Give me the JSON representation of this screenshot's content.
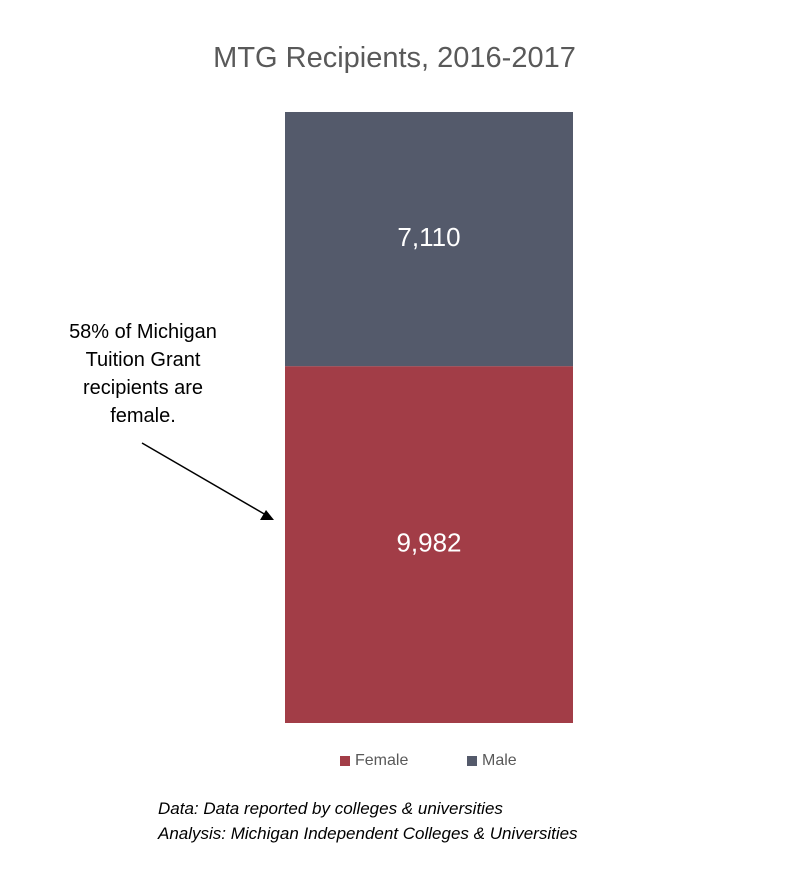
{
  "chart_data": {
    "type": "bar",
    "stacked": true,
    "title": "MTG Recipients, 2016-2017",
    "categories": [
      ""
    ],
    "series": [
      {
        "name": "Female",
        "values": [
          9982
        ],
        "label": "9,982",
        "color": "#a23d47"
      },
      {
        "name": "Male",
        "values": [
          7110
        ],
        "label": "7,110",
        "color": "#545a6b"
      }
    ],
    "legend_position": "bottom",
    "grid": false,
    "axes_visible": false
  },
  "annotation": {
    "text": "58% of Michigan Tuition Grant recipients are female."
  },
  "footnote": {
    "line1": "Data: Data reported by colleges & universities",
    "line2": "Analysis: Michigan Independent Colleges & Universities"
  }
}
